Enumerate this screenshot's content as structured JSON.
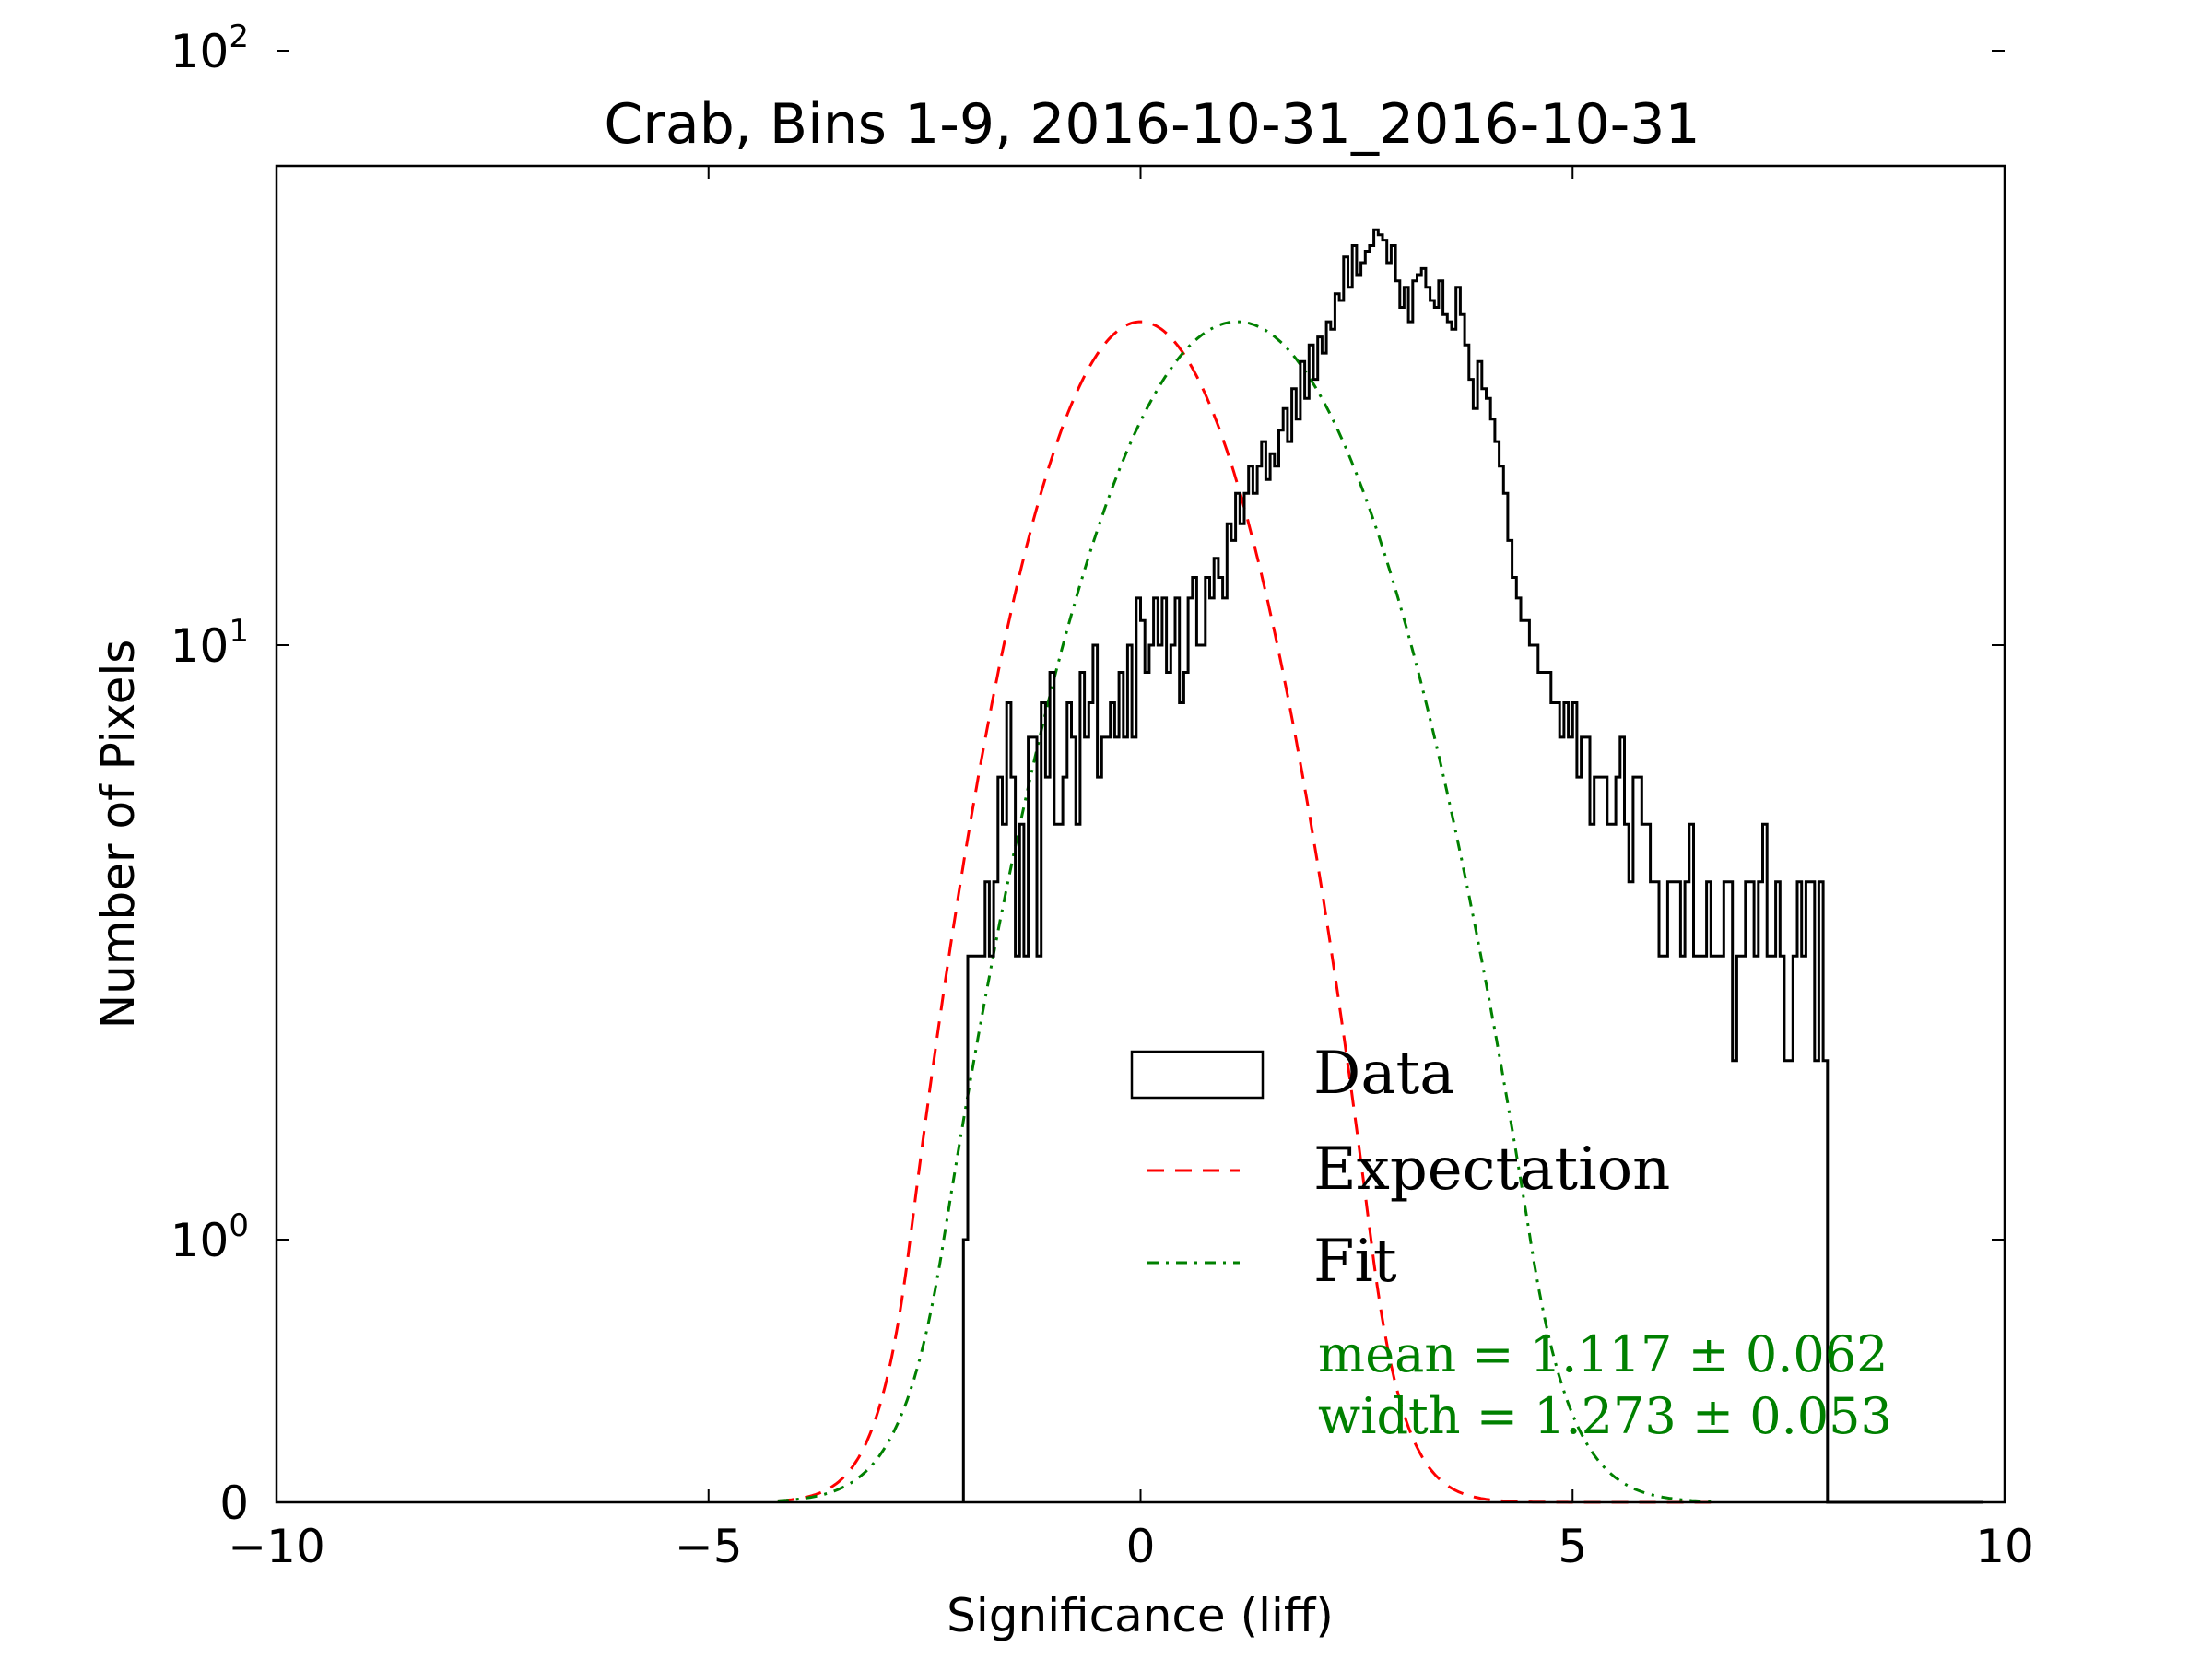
{
  "chart_data": {
    "type": "histogram",
    "title": "Crab, Bins 1-9, 2016-10-31_2016-10-31",
    "xlabel": "Significance (liff)",
    "ylabel": "Number of Pixels",
    "xlim": [
      -10,
      10
    ],
    "yscale": "symlog",
    "x_ticks": [
      -10,
      -5,
      0,
      5,
      10
    ],
    "x_tick_labels": [
      "−10",
      "−5",
      "0",
      "5",
      "10"
    ],
    "y_ticks": [
      {
        "value": 0,
        "base": "0",
        "exp": ""
      },
      {
        "value": 1,
        "base": "10",
        "exp": "0"
      },
      {
        "value": 10,
        "base": "10",
        "exp": "1"
      },
      {
        "value": 100,
        "base": "10",
        "exp": "2"
      }
    ],
    "histogram": {
      "name": "Data",
      "color": "#000000",
      "bin_start": -2.05,
      "bin_width": 0.05,
      "counts": [
        1,
        3,
        3,
        3,
        3,
        4,
        3,
        4,
        6,
        5,
        8,
        6,
        3,
        5,
        3,
        7,
        7,
        3,
        8,
        6,
        9,
        5,
        5,
        6,
        8,
        7,
        5,
        9,
        7,
        8,
        10,
        6,
        7,
        7,
        8,
        7,
        9,
        7,
        10,
        7,
        12,
        11,
        9,
        10,
        12,
        10,
        12,
        9,
        10,
        12,
        8,
        9,
        12,
        13,
        10,
        10,
        13,
        12,
        14,
        13,
        12,
        16,
        15,
        18,
        16,
        18,
        20,
        18,
        20,
        22,
        19,
        21,
        20,
        23,
        25,
        22,
        27,
        24,
        30,
        26,
        32,
        28,
        33,
        31,
        35,
        34,
        39,
        38,
        45,
        40,
        47,
        42,
        44,
        46,
        47,
        50,
        49,
        48,
        44,
        47,
        41,
        37,
        40,
        35,
        41,
        42,
        43,
        40,
        38,
        37,
        41,
        36,
        35,
        34,
        40,
        36,
        32,
        28,
        25,
        30,
        27,
        26,
        24,
        22,
        20,
        18,
        15,
        13,
        12,
        11,
        11,
        10,
        10,
        9,
        9,
        9,
        8,
        8,
        7,
        8,
        7,
        8,
        6,
        7,
        7,
        5,
        6,
        6,
        6,
        5,
        5,
        6,
        7,
        5,
        4,
        6,
        6,
        5,
        5,
        4,
        4,
        3,
        3,
        4,
        4,
        4,
        3,
        4,
        5,
        3,
        3,
        3,
        4,
        3,
        3,
        3,
        4,
        4,
        2,
        3,
        3,
        4,
        4,
        3,
        4,
        5,
        3,
        3,
        4,
        3,
        2,
        2,
        3,
        4,
        3,
        4,
        4,
        2,
        4,
        2,
        0,
        0,
        0,
        0,
        0,
        0,
        0,
        0,
        0,
        0,
        0,
        0,
        0,
        0,
        0,
        0,
        0,
        0,
        0,
        0,
        0,
        0,
        0,
        0,
        0,
        0,
        0,
        0,
        0,
        0,
        0,
        0,
        0,
        0,
        0,
        0
      ]
    },
    "series": [
      {
        "name": "Expectation",
        "type": "gaussian",
        "mean": 0.0,
        "width": 1.0,
        "norm": 35,
        "color": "#ff0000",
        "dash": "dashed"
      },
      {
        "name": "Fit",
        "type": "gaussian",
        "mean": 1.117,
        "width": 1.273,
        "norm": 35,
        "color": "#008000",
        "dash": "dashdot"
      }
    ],
    "legend": {
      "location": "lower-right",
      "entries": [
        "Data",
        "Expectation",
        "Fit"
      ],
      "annotations": [
        "mean = 1.117 ± 0.062",
        "width = 1.273 ± 0.053"
      ],
      "annotation_color": "#008000"
    }
  }
}
